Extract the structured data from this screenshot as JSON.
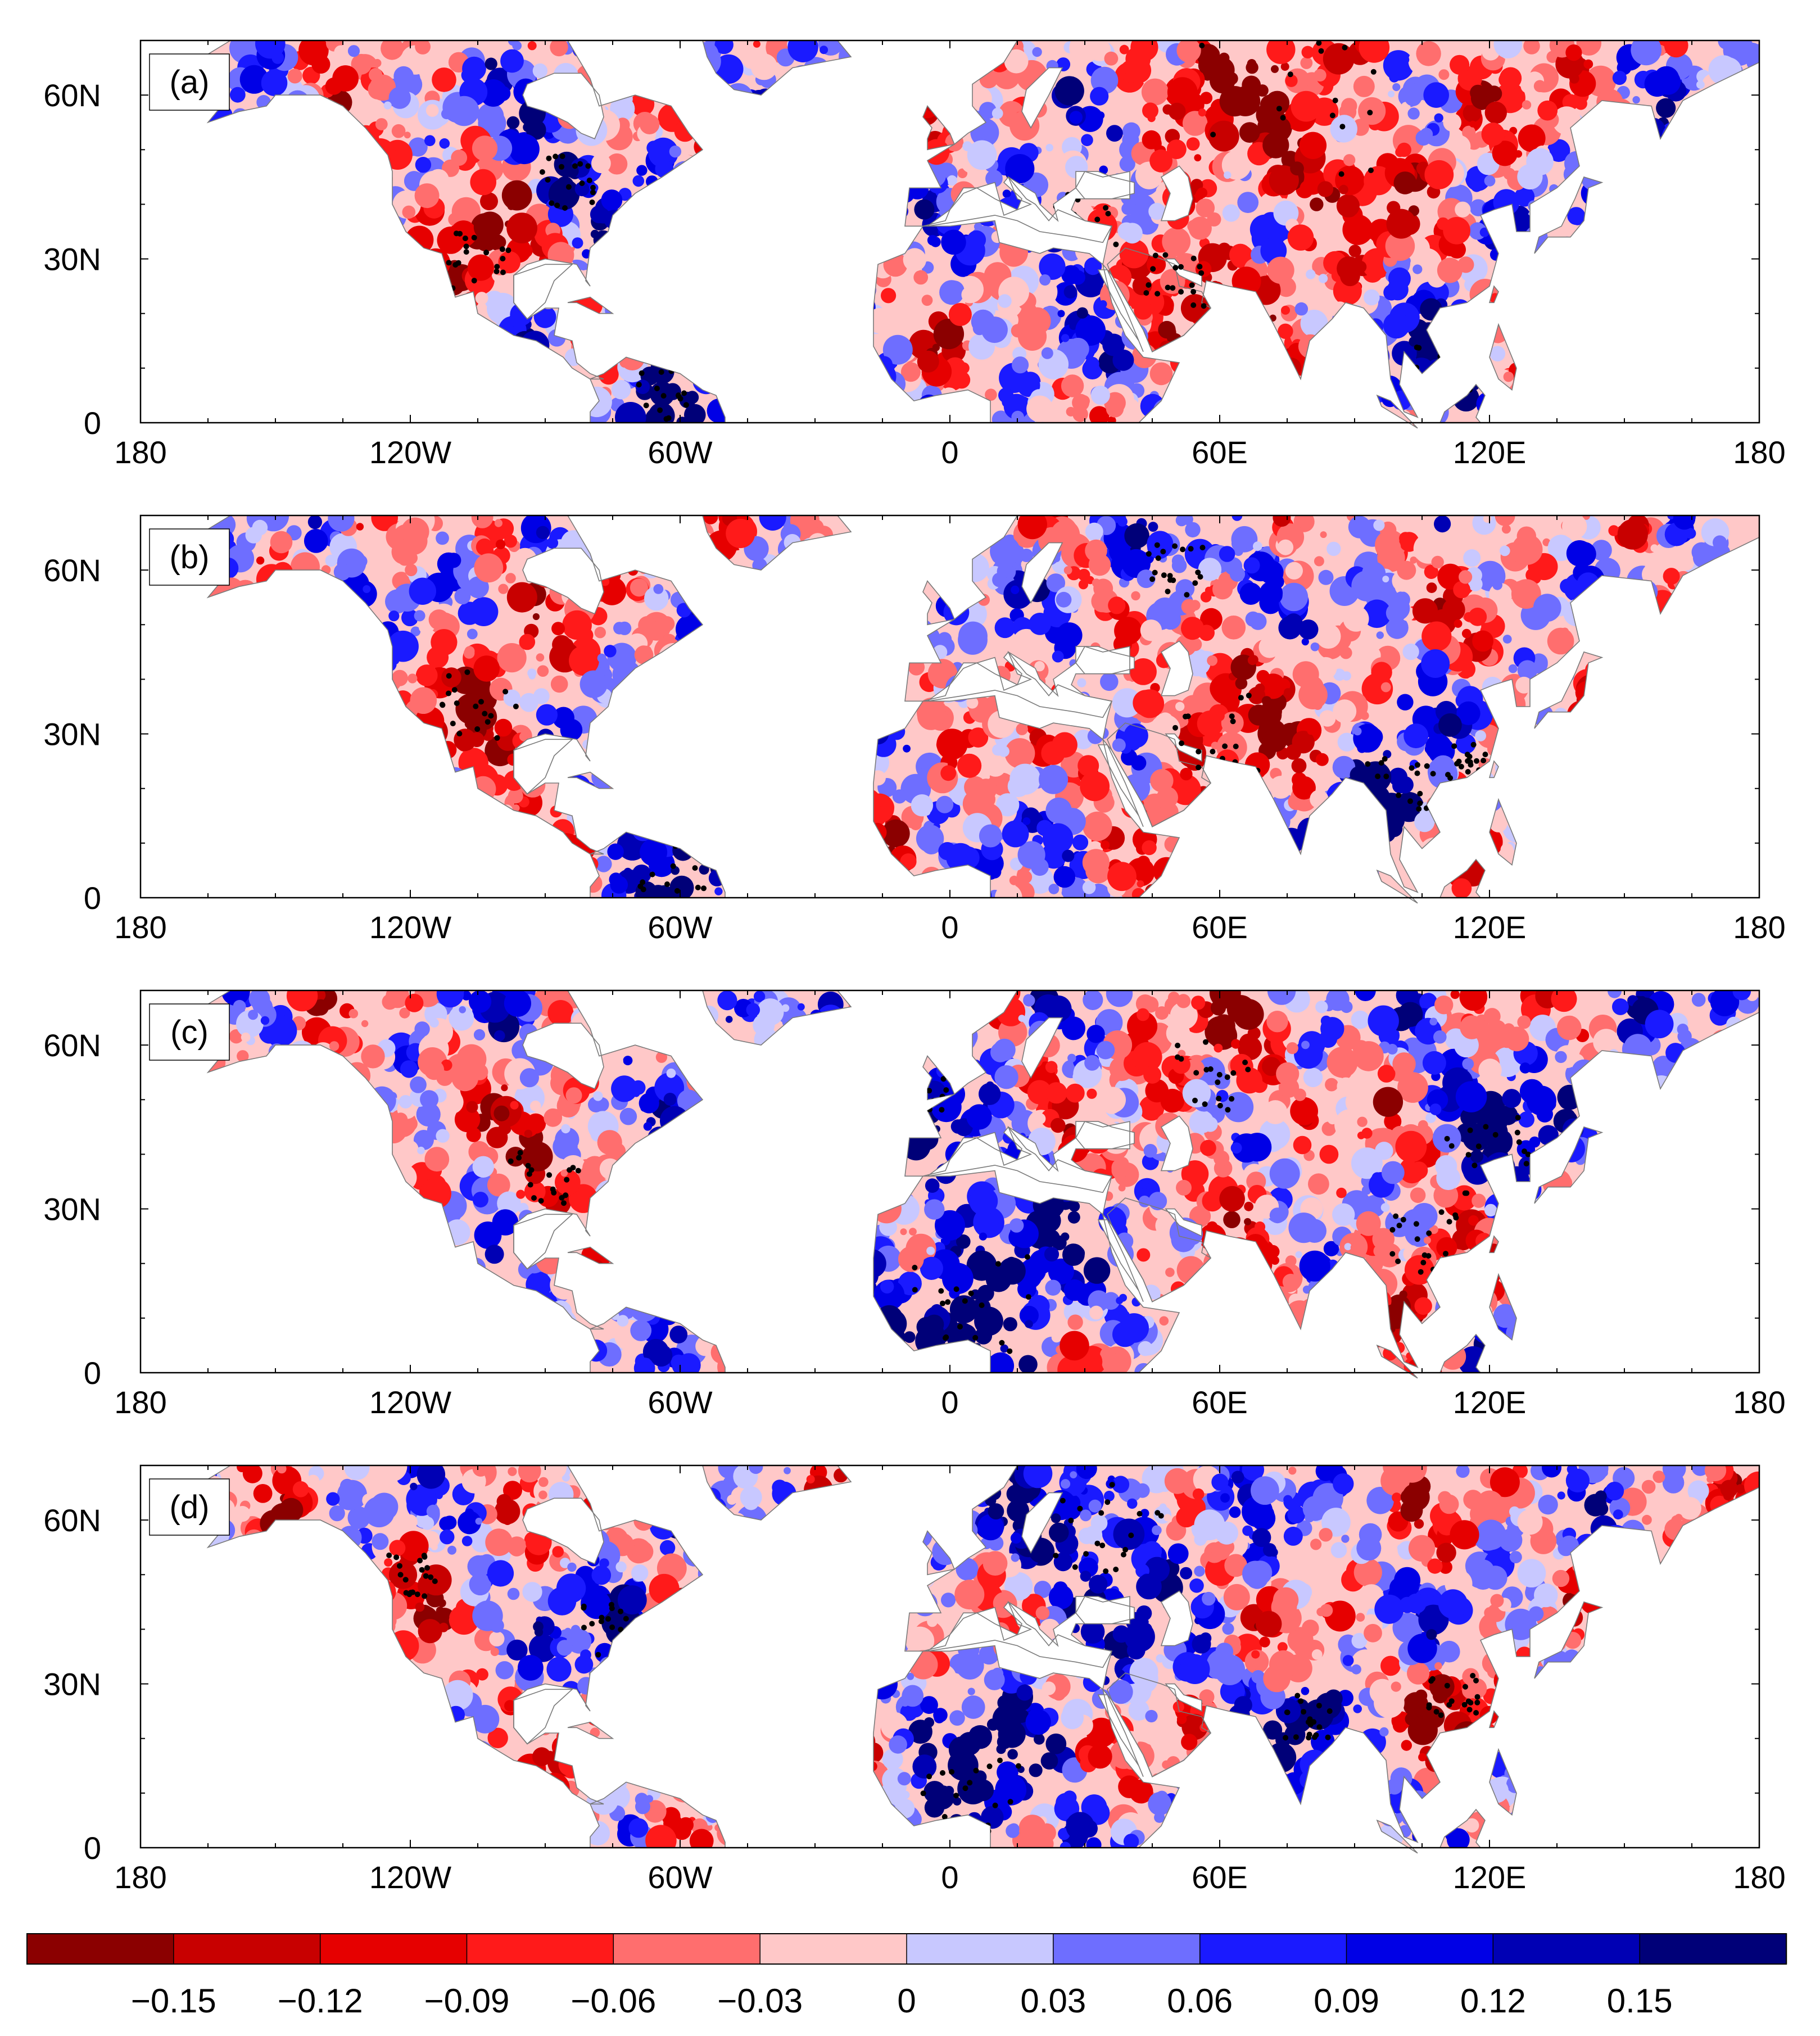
{
  "figure": {
    "panels": [
      {
        "id": "a",
        "label": "(a)"
      },
      {
        "id": "b",
        "label": "(b)"
      },
      {
        "id": "c",
        "label": "(c)"
      },
      {
        "id": "d",
        "label": "(d)"
      }
    ],
    "lon_ticks": [
      "180",
      "120W",
      "60W",
      "0",
      "60E",
      "120E",
      "180"
    ],
    "lat_ticks": [
      "0",
      "30N",
      "60N"
    ],
    "lon_range": [
      -180,
      180
    ],
    "lat_range": [
      0,
      70
    ]
  },
  "colorbar": {
    "labels": [
      "−0.15",
      "−0.12",
      "−0.09",
      "−0.06",
      "−0.03",
      "0",
      "0.03",
      "0.06",
      "0.09",
      "0.12",
      "0.15"
    ],
    "colors": [
      "#8b0000",
      "#c80000",
      "#e60000",
      "#ff1a1a",
      "#ff6e6e",
      "#ffc8c8",
      "#c8c8ff",
      "#6e6eff",
      "#1a1aff",
      "#0000e6",
      "#0000b4",
      "#000078"
    ]
  },
  "palette": {
    "positive_strong": "#0000b4",
    "positive_mid": "#1a1aff",
    "positive_weak": "#c8c8ff",
    "negative_strong": "#c80000",
    "negative_mid": "#ff1a1a",
    "negative_weak": "#ffc8c8"
  }
}
